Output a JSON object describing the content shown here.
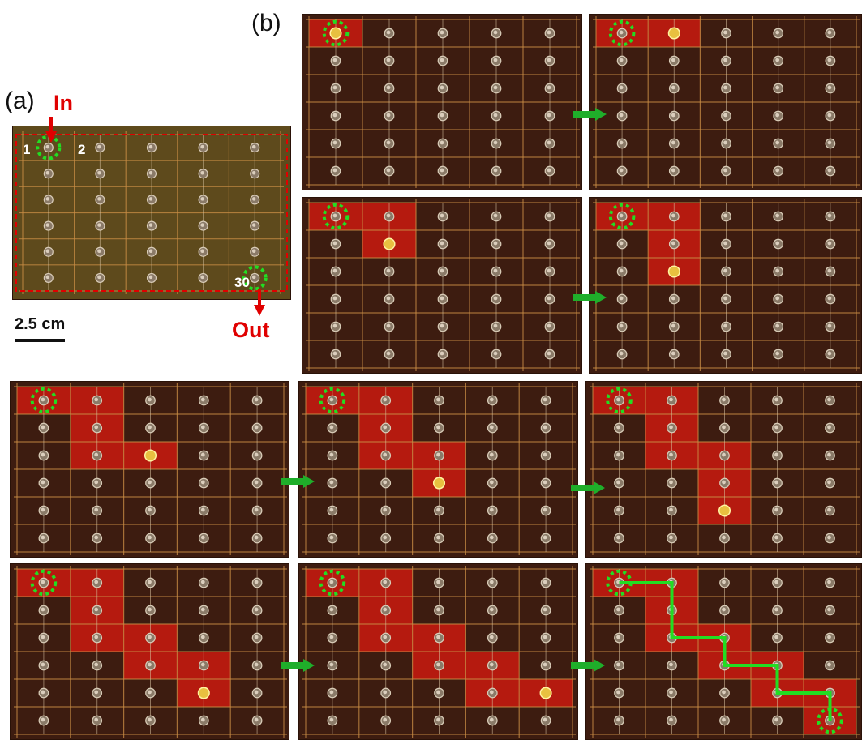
{
  "labels": {
    "panel_a": "(a)",
    "panel_b": "(b)",
    "in": "In",
    "out": "Out",
    "well_first": "1",
    "well_second": "2",
    "well_last": "30",
    "scale": "2.5 cm"
  },
  "grid": {
    "cols": 5,
    "rows": 6
  },
  "colors": {
    "board": "#3d1c10",
    "board_a": "#5e4a1c",
    "grid_line": "#c98d45",
    "highlight": "#d01a10",
    "marker": "#22dd22",
    "arrow": "#1fae2a",
    "in_out": "#e00000",
    "droplet": "#e8c040"
  },
  "frames": [
    {
      "highlight": [
        [
          0,
          0
        ]
      ],
      "droplet": [
        0,
        0
      ]
    },
    {
      "highlight": [
        [
          0,
          0
        ],
        [
          1,
          0
        ]
      ],
      "droplet": [
        1,
        0
      ]
    },
    {
      "highlight": [
        [
          0,
          0
        ],
        [
          1,
          0
        ],
        [
          1,
          1
        ]
      ],
      "droplet": [
        1,
        1
      ]
    },
    {
      "highlight": [
        [
          0,
          0
        ],
        [
          1,
          0
        ],
        [
          1,
          1
        ],
        [
          1,
          2
        ]
      ],
      "droplet": [
        1,
        2
      ]
    },
    {
      "highlight": [
        [
          0,
          0
        ],
        [
          1,
          0
        ],
        [
          1,
          1
        ],
        [
          1,
          2
        ],
        [
          2,
          2
        ]
      ],
      "droplet": [
        2,
        2
      ]
    },
    {
      "highlight": [
        [
          0,
          0
        ],
        [
          1,
          0
        ],
        [
          1,
          1
        ],
        [
          1,
          2
        ],
        [
          2,
          2
        ],
        [
          2,
          3
        ]
      ],
      "droplet": [
        2,
        3
      ]
    },
    {
      "highlight": [
        [
          0,
          0
        ],
        [
          1,
          0
        ],
        [
          1,
          1
        ],
        [
          1,
          2
        ],
        [
          2,
          2
        ],
        [
          2,
          3
        ],
        [
          2,
          4
        ]
      ],
      "droplet": [
        2,
        4
      ]
    },
    {
      "highlight": [
        [
          0,
          0
        ],
        [
          1,
          0
        ],
        [
          1,
          1
        ],
        [
          1,
          2
        ],
        [
          2,
          2
        ],
        [
          2,
          3
        ],
        [
          3,
          3
        ],
        [
          3,
          4
        ]
      ],
      "droplet": [
        3,
        4
      ]
    },
    {
      "highlight": [
        [
          0,
          0
        ],
        [
          1,
          0
        ],
        [
          1,
          1
        ],
        [
          1,
          2
        ],
        [
          2,
          2
        ],
        [
          2,
          3
        ],
        [
          3,
          3
        ],
        [
          3,
          4
        ],
        [
          4,
          4
        ]
      ],
      "droplet": [
        4,
        4
      ]
    },
    {
      "highlight": [
        [
          0,
          0
        ],
        [
          1,
          0
        ],
        [
          1,
          1
        ],
        [
          1,
          2
        ],
        [
          2,
          2
        ],
        [
          2,
          3
        ],
        [
          3,
          3
        ],
        [
          3,
          4
        ],
        [
          4,
          4
        ],
        [
          4,
          5
        ]
      ],
      "droplet": null,
      "path": [
        [
          0,
          0
        ],
        [
          1,
          0
        ],
        [
          1,
          2
        ],
        [
          2,
          2
        ],
        [
          2,
          3
        ],
        [
          3,
          3
        ],
        [
          3,
          4
        ],
        [
          4,
          4
        ],
        [
          4,
          5
        ]
      ]
    }
  ]
}
